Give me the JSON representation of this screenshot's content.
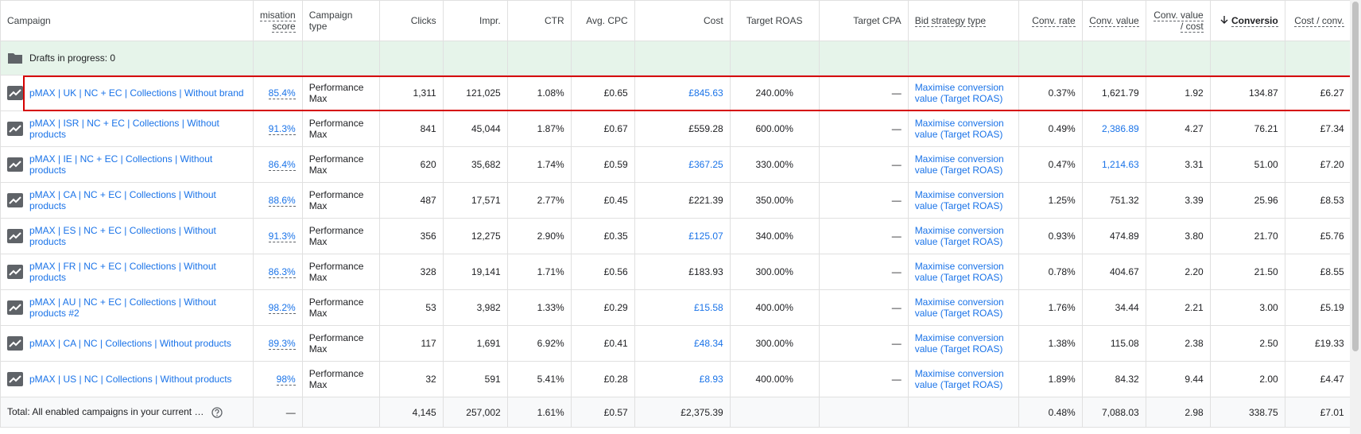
{
  "headers": [
    "Campaign",
    "misation score",
    "Campaign type",
    "Clicks",
    "Impr.",
    "CTR",
    "Avg. CPC",
    "Cost",
    "Target ROAS",
    "Target CPA",
    "Bid strategy type",
    "Conv. rate",
    "Conv. value",
    "Conv. value / cost",
    "Conversio",
    "Cost / conv."
  ],
  "drafts": "Drafts in progress: 0",
  "rows": [
    {
      "campaign": "pMAX | UK | NC + EC | Collections | Without brand",
      "score": "85.4%",
      "type": "Performance Max",
      "clicks": "1,311",
      "impr": "121,025",
      "ctr": "1.08%",
      "cpc": "£0.65",
      "cost": "£845.63",
      "troas": "240.00%",
      "tcpa": "—",
      "bid": "Maximise conversion value (Target ROAS)",
      "rate": "0.37%",
      "value": "1,621.79",
      "vpc": "1.92",
      "conv": "134.87",
      "cpa": "£6.27"
    },
    {
      "campaign": "pMAX | ISR | NC + EC | Collections | Without products",
      "score": "91.3%",
      "type": "Performance Max",
      "clicks": "841",
      "impr": "45,044",
      "ctr": "1.87%",
      "cpc": "£0.67",
      "cost": "£559.28",
      "troas": "600.00%",
      "tcpa": "—",
      "bid": "Maximise conversion value (Target ROAS)",
      "rate": "0.49%",
      "value": "2,386.89",
      "vpc": "4.27",
      "conv": "76.21",
      "cpa": "£7.34"
    },
    {
      "campaign": "pMAX | IE | NC + EC | Collections | Without products",
      "score": "86.4%",
      "type": "Performance Max",
      "clicks": "620",
      "impr": "35,682",
      "ctr": "1.74%",
      "cpc": "£0.59",
      "cost": "£367.25",
      "troas": "330.00%",
      "tcpa": "—",
      "bid": "Maximise conversion value (Target ROAS)",
      "rate": "0.47%",
      "value": "1,214.63",
      "vpc": "3.31",
      "conv": "51.00",
      "cpa": "£7.20"
    },
    {
      "campaign": "pMAX | CA | NC + EC | Collections | Without products",
      "score": "88.6%",
      "type": "Performance Max",
      "clicks": "487",
      "impr": "17,571",
      "ctr": "2.77%",
      "cpc": "£0.45",
      "cost": "£221.39",
      "troas": "350.00%",
      "tcpa": "—",
      "bid": "Maximise conversion value (Target ROAS)",
      "rate": "1.25%",
      "value": "751.32",
      "vpc": "3.39",
      "conv": "25.96",
      "cpa": "£8.53"
    },
    {
      "campaign": "pMAX | ES | NC + EC | Collections | Without products",
      "score": "91.3%",
      "type": "Performance Max",
      "clicks": "356",
      "impr": "12,275",
      "ctr": "2.90%",
      "cpc": "£0.35",
      "cost": "£125.07",
      "troas": "340.00%",
      "tcpa": "—",
      "bid": "Maximise conversion value (Target ROAS)",
      "rate": "0.93%",
      "value": "474.89",
      "vpc": "3.80",
      "conv": "21.70",
      "cpa": "£5.76"
    },
    {
      "campaign": "pMAX | FR | NC + EC | Collections | Without products",
      "score": "86.3%",
      "type": "Performance Max",
      "clicks": "328",
      "impr": "19,141",
      "ctr": "1.71%",
      "cpc": "£0.56",
      "cost": "£183.93",
      "troas": "300.00%",
      "tcpa": "—",
      "bid": "Maximise conversion value (Target ROAS)",
      "rate": "0.78%",
      "value": "404.67",
      "vpc": "2.20",
      "conv": "21.50",
      "cpa": "£8.55"
    },
    {
      "campaign": "pMAX | AU | NC + EC | Collections | Without products #2",
      "score": "98.2%",
      "type": "Performance Max",
      "clicks": "53",
      "impr": "3,982",
      "ctr": "1.33%",
      "cpc": "£0.29",
      "cost": "£15.58",
      "troas": "400.00%",
      "tcpa": "—",
      "bid": "Maximise conversion value (Target ROAS)",
      "rate": "1.76%",
      "value": "34.44",
      "vpc": "2.21",
      "conv": "3.00",
      "cpa": "£5.19"
    },
    {
      "campaign": "pMAX | CA | NC | Collections | Without products",
      "score": "89.3%",
      "type": "Performance Max",
      "clicks": "117",
      "impr": "1,691",
      "ctr": "6.92%",
      "cpc": "£0.41",
      "cost": "£48.34",
      "troas": "300.00%",
      "tcpa": "—",
      "bid": "Maximise conversion value (Target ROAS)",
      "rate": "1.38%",
      "value": "115.08",
      "vpc": "2.38",
      "conv": "2.50",
      "cpa": "£19.33"
    },
    {
      "campaign": "pMAX | US | NC | Collections | Without products",
      "score": "98%",
      "type": "Performance Max",
      "clicks": "32",
      "impr": "591",
      "ctr": "5.41%",
      "cpc": "£0.28",
      "cost": "£8.93",
      "troas": "400.00%",
      "tcpa": "—",
      "bid": "Maximise conversion value (Target ROAS)",
      "rate": "1.89%",
      "value": "84.32",
      "vpc": "9.44",
      "conv": "2.00",
      "cpa": "£4.47"
    }
  ],
  "total": {
    "campaign": "Total: All enabled campaigns in your current …",
    "score": "—",
    "clicks": "4,145",
    "impr": "257,002",
    "ctr": "1.61%",
    "cpc": "£0.57",
    "cost": "£2,375.39",
    "rate": "0.48%",
    "value": "7,088.03",
    "vpc": "2.98",
    "conv": "338.75",
    "cpa": "£7.01"
  }
}
